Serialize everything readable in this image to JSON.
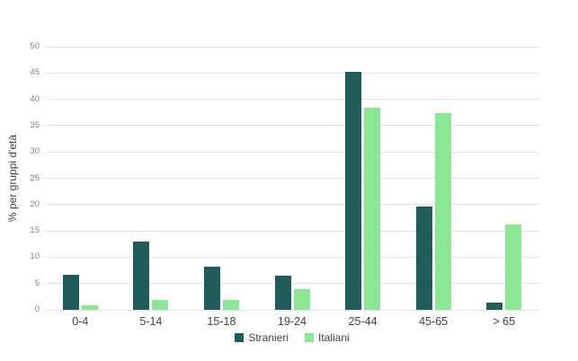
{
  "chart_data": {
    "type": "bar",
    "title": "",
    "xlabel": "",
    "ylabel": "% per gruppi d'età",
    "categories": [
      "0-4",
      "5-14",
      "15-18",
      "19-24",
      "25-44",
      "45-65",
      "> 65"
    ],
    "series": [
      {
        "name": "Stranieri",
        "color": "#1f5c5a",
        "values": [
          6.7,
          12.9,
          8.2,
          6.5,
          45.2,
          19.6,
          1.4
        ]
      },
      {
        "name": "Italiani",
        "color": "#8ce795",
        "values": [
          0.8,
          1.8,
          1.8,
          3.9,
          38.4,
          37.3,
          16.2
        ]
      }
    ],
    "ylim": [
      0,
      50
    ],
    "yticks": [
      0,
      5,
      10,
      15,
      20,
      25,
      30,
      35,
      40,
      45,
      50
    ],
    "grid": true,
    "legend_position": "bottom-center",
    "colors": {
      "gridline": "#e2e2e2",
      "tick_label": "#808080",
      "axis_label": "#404040",
      "background": "#ffffff"
    }
  }
}
